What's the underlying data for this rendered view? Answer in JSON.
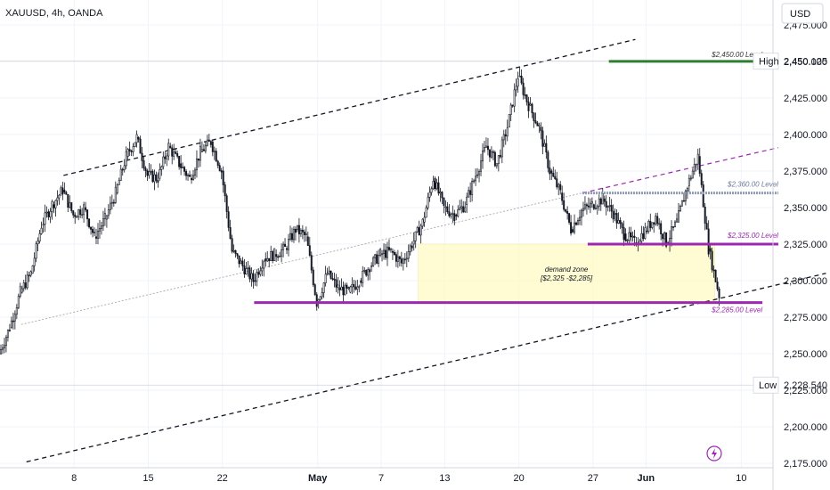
{
  "header": {
    "symbol_title": "XAUUSD, 4h, OANDA",
    "currency": "USD"
  },
  "chart_data": {
    "type": "candlestick",
    "title": "XAUUSD, 4h, OANDA",
    "y_unit": "USD",
    "ylim": [
      2172,
      2492
    ],
    "y_ticks": [
      "2,475.000",
      "2,450.000",
      "2,425.000",
      "2,400.000",
      "2,375.000",
      "2,350.000",
      "2,325.000",
      "2,300.000",
      "2,275.000",
      "2,250.000",
      "2,225.000",
      "2,200.000",
      "2,175.000"
    ],
    "y_tick_values": [
      2475,
      2450,
      2425,
      2400,
      2375,
      2350,
      2325,
      2300,
      2275,
      2250,
      2225,
      2200,
      2175
    ],
    "x_ticks": [
      {
        "label": "8",
        "day": 8,
        "bold": false
      },
      {
        "label": "15",
        "day": 15,
        "bold": false
      },
      {
        "label": "22",
        "day": 22,
        "bold": false
      },
      {
        "label": "May",
        "day": 31,
        "bold": true
      },
      {
        "label": "7",
        "day": 37,
        "bold": false
      },
      {
        "label": "13",
        "day": 43,
        "bold": false
      },
      {
        "label": "20",
        "day": 50,
        "bold": false
      },
      {
        "label": "27",
        "day": 57,
        "bold": false
      },
      {
        "label": "Jun",
        "day": 62,
        "bold": true
      },
      {
        "label": "10",
        "day": 71,
        "bold": false
      }
    ],
    "x_range_days": [
      1,
      74
    ],
    "high_label": "High",
    "high_value": "2,450.125",
    "high": 2450.125,
    "low_label": "Low",
    "low_value": "2,228.540",
    "low": 2228.54,
    "levels": [
      {
        "label": "$2,450.00 Level",
        "value": 2450,
        "color": "#2e7d32"
      },
      {
        "label": "$2,360.00 Level",
        "value": 2360,
        "color": "#8f9bb3"
      },
      {
        "label": "$2,325.00 Level",
        "value": 2325,
        "color": "#9c27b0"
      },
      {
        "label": "$2,285.00 Level",
        "value": 2285,
        "color": "#9c27b0"
      }
    ],
    "demand_zone": {
      "label": "demand zone",
      "range": "[$2,325 -$2,285]",
      "top": 2325,
      "bottom": 2285
    },
    "candle_keypoints": [
      [
        1,
        2250
      ],
      [
        2,
        2268
      ],
      [
        3,
        2292
      ],
      [
        4,
        2305
      ],
      [
        5,
        2338
      ],
      [
        6,
        2352
      ],
      [
        7,
        2362
      ],
      [
        8,
        2345
      ],
      [
        9,
        2350
      ],
      [
        10,
        2330
      ],
      [
        11,
        2342
      ],
      [
        12,
        2360
      ],
      [
        13,
        2385
      ],
      [
        14,
        2398
      ],
      [
        15,
        2372
      ],
      [
        16,
        2370
      ],
      [
        17,
        2392
      ],
      [
        18,
        2380
      ],
      [
        19,
        2370
      ],
      [
        20,
        2388
      ],
      [
        21,
        2395
      ],
      [
        22,
        2375
      ],
      [
        23,
        2320
      ],
      [
        24,
        2310
      ],
      [
        25,
        2300
      ],
      [
        26,
        2315
      ],
      [
        27,
        2318
      ],
      [
        28,
        2322
      ],
      [
        29,
        2335
      ],
      [
        30,
        2330
      ],
      [
        31,
        2285
      ],
      [
        32,
        2305
      ],
      [
        33,
        2295
      ],
      [
        34,
        2292
      ],
      [
        35,
        2300
      ],
      [
        36,
        2310
      ],
      [
        37,
        2318
      ],
      [
        38,
        2320
      ],
      [
        39,
        2312
      ],
      [
        40,
        2325
      ],
      [
        41,
        2340
      ],
      [
        42,
        2370
      ],
      [
        43,
        2350
      ],
      [
        44,
        2345
      ],
      [
        45,
        2352
      ],
      [
        46,
        2372
      ],
      [
        47,
        2392
      ],
      [
        48,
        2380
      ],
      [
        49,
        2405
      ],
      [
        50,
        2440
      ],
      [
        51,
        2420
      ],
      [
        52,
        2405
      ],
      [
        53,
        2375
      ],
      [
        54,
        2360
      ],
      [
        55,
        2335
      ],
      [
        56,
        2348
      ],
      [
        57,
        2352
      ],
      [
        58,
        2356
      ],
      [
        59,
        2346
      ],
      [
        60,
        2332
      ],
      [
        61,
        2326
      ],
      [
        62,
        2334
      ],
      [
        63,
        2344
      ],
      [
        64,
        2326
      ],
      [
        65,
        2340
      ],
      [
        66,
        2365
      ],
      [
        67,
        2385
      ],
      [
        68,
        2322
      ],
      [
        69,
        2290
      ]
    ]
  }
}
